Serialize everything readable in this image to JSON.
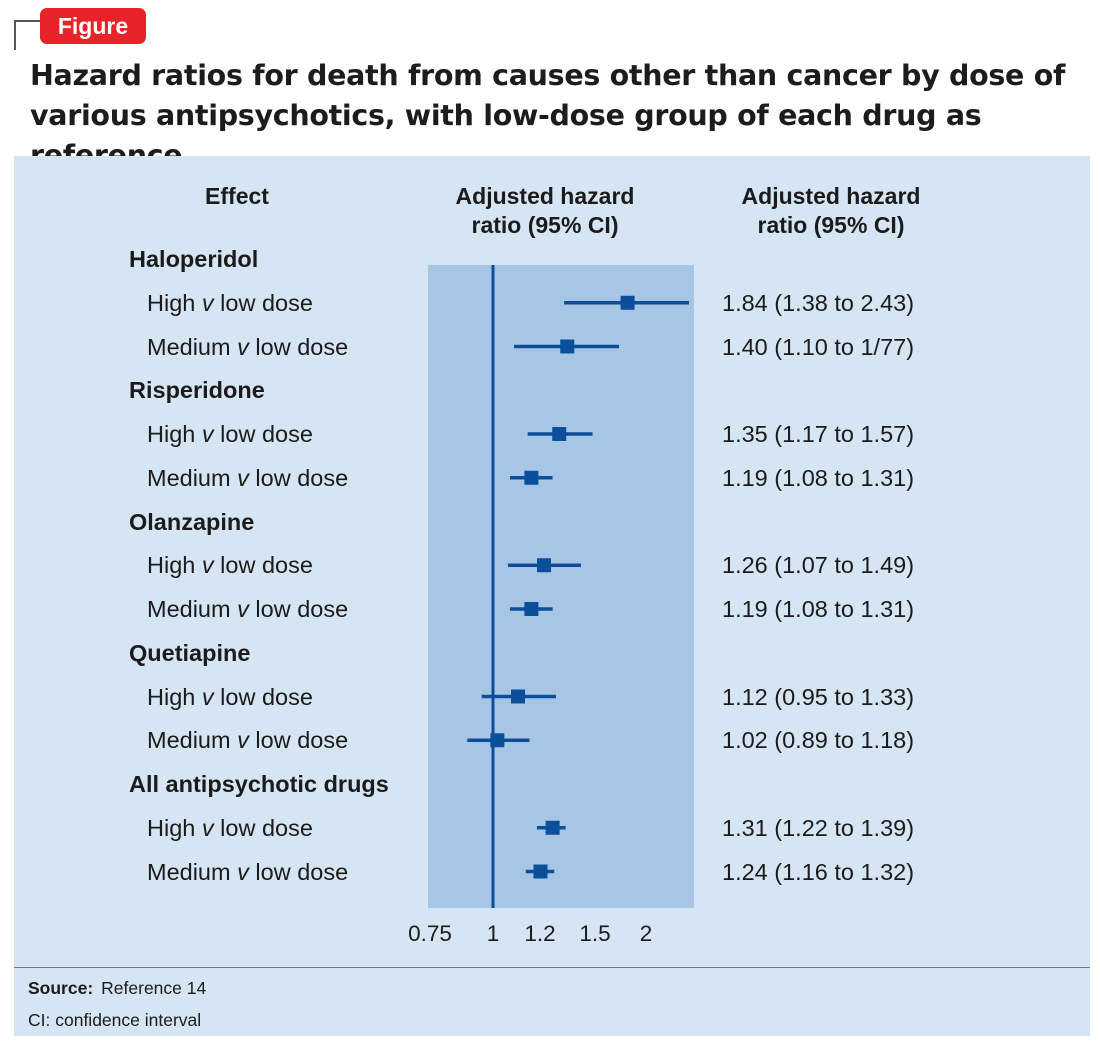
{
  "badge": "Figure",
  "title_line1": "Hazard ratios for death from causes other than cancer by dose of",
  "title_line2": "various antipsychotics, with low-dose group of each drug as reference",
  "header": {
    "effect": "Effect",
    "plot_line1": "Adjusted hazard",
    "plot_line2": "ratio (95% CI)",
    "values_line1": "Adjusted hazard",
    "values_line2": "ratio (95% CI)"
  },
  "colors": {
    "panel": "#d6e5f3",
    "plot_band": "#a7c6e5",
    "marker": "#0b4f9b",
    "badge": "#e8232a"
  },
  "chart_data": {
    "type": "forest",
    "x_scale": "log",
    "xlim": [
      0.75,
      2.5
    ],
    "xticks": [
      "0.75",
      "1",
      "1.2",
      "1.5",
      "2"
    ],
    "reference_value": 1,
    "rows": [
      {
        "kind": "group",
        "label": "Haloperidol"
      },
      {
        "kind": "item",
        "label": "High",
        "v": "v",
        "rest": "low dose",
        "hr": 1.84,
        "lo": 1.38,
        "hi": 2.43,
        "text": "1.84 (1.38 to 2.43)"
      },
      {
        "kind": "item",
        "label": "Medium",
        "v": "v",
        "rest": "low dose",
        "hr": 1.4,
        "lo": 1.1,
        "hi": 1.77,
        "text": "1.40 (1.10 to 1/77)"
      },
      {
        "kind": "group",
        "label": "Risperidone"
      },
      {
        "kind": "item",
        "label": "High",
        "v": "v",
        "rest": "low dose",
        "hr": 1.35,
        "lo": 1.17,
        "hi": 1.57,
        "text": "1.35 (1.17 to 1.57)"
      },
      {
        "kind": "item",
        "label": "Medium",
        "v": "v",
        "rest": "low dose",
        "hr": 1.19,
        "lo": 1.08,
        "hi": 1.31,
        "text": "1.19 (1.08 to 1.31)"
      },
      {
        "kind": "group",
        "label": "Olanzapine"
      },
      {
        "kind": "item",
        "label": "High",
        "v": "v",
        "rest": "low dose",
        "hr": 1.26,
        "lo": 1.07,
        "hi": 1.49,
        "text": "1.26 (1.07 to 1.49)"
      },
      {
        "kind": "item",
        "label": "Medium",
        "v": "v",
        "rest": "low dose",
        "hr": 1.19,
        "lo": 1.08,
        "hi": 1.31,
        "text": "1.19 (1.08 to 1.31)"
      },
      {
        "kind": "group",
        "label": "Quetiapine"
      },
      {
        "kind": "item",
        "label": "High",
        "v": "v",
        "rest": "low dose",
        "hr": 1.12,
        "lo": 0.95,
        "hi": 1.33,
        "text": "1.12 (0.95 to 1.33)"
      },
      {
        "kind": "item",
        "label": "Medium",
        "v": "v",
        "rest": "low dose",
        "hr": 1.02,
        "lo": 0.89,
        "hi": 1.18,
        "text": "1.02 (0.89 to 1.18)"
      },
      {
        "kind": "group",
        "label": "All antipsychotic drugs"
      },
      {
        "kind": "item",
        "label": "High",
        "v": "v",
        "rest": "low dose",
        "hr": 1.31,
        "lo": 1.22,
        "hi": 1.39,
        "text": "1.31 (1.22 to 1.39)"
      },
      {
        "kind": "item",
        "label": "Medium",
        "v": "v",
        "rest": "low dose",
        "hr": 1.24,
        "lo": 1.16,
        "hi": 1.32,
        "text": "1.24 (1.16 to 1.32)"
      }
    ]
  },
  "source_label": "Source:",
  "source_text": "Reference 14",
  "footnote": "CI: confidence interval"
}
